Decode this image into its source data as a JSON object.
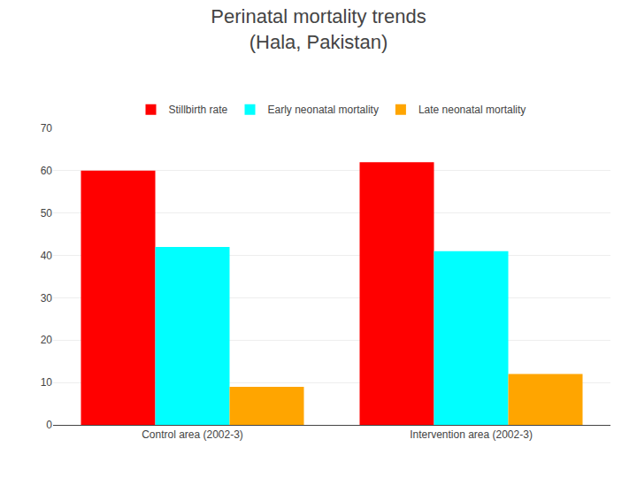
{
  "chart_data": {
    "type": "bar",
    "title": "Perinatal mortality trends",
    "subtitle": "(Hala, Pakistan)",
    "categories": [
      "Control area (2002-3)",
      "Intervention area (2002-3)"
    ],
    "series": [
      {
        "name": "Stillbirth rate",
        "color": "#ff0000",
        "values": [
          60,
          62
        ]
      },
      {
        "name": "Early neonatal mortality",
        "color": "#00ffff",
        "values": [
          42,
          41
        ]
      },
      {
        "name": "Late neonatal mortality",
        "color": "#ffa500",
        "values": [
          9,
          12
        ]
      }
    ],
    "ylim": [
      0,
      70
    ],
    "yticks": [
      0,
      10,
      20,
      30,
      40,
      50,
      60,
      70
    ],
    "grid": true,
    "legend": "top"
  }
}
